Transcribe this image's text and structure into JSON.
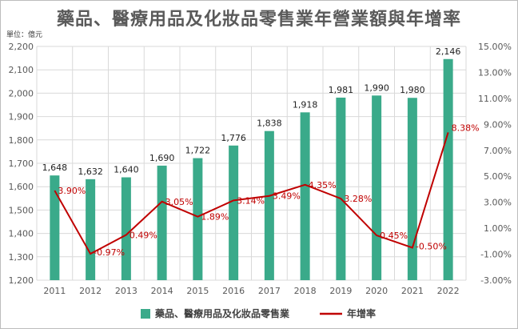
{
  "chart_data": {
    "type": "bar",
    "title": "藥品、醫療用品及化妝品零售業年營業額與年增率",
    "unit_label": "單位：億元",
    "categories": [
      "2011",
      "2012",
      "2013",
      "2014",
      "2015",
      "2016",
      "2017",
      "2018",
      "2019",
      "2020",
      "2021",
      "2022"
    ],
    "series": [
      {
        "name": "藥品、醫療用品及化妝品零售業",
        "type": "bar",
        "axis": "left",
        "color": "#3aaa8a",
        "values": [
          1648,
          1632,
          1640,
          1690,
          1722,
          1776,
          1838,
          1918,
          1981,
          1990,
          1980,
          2146
        ],
        "labels": [
          "1,648",
          "1,632",
          "1,640",
          "1,690",
          "1,722",
          "1,776",
          "1,838",
          "1,918",
          "1,981",
          "1,990",
          "1,980",
          "2,146"
        ]
      },
      {
        "name": "年增率",
        "type": "line",
        "axis": "right",
        "color": "#c00000",
        "values": [
          3.9,
          -0.97,
          0.49,
          3.05,
          1.89,
          3.14,
          3.49,
          4.35,
          3.28,
          0.45,
          -0.5,
          8.38
        ],
        "labels": [
          "3.90%",
          "-0.97%",
          "0.49%",
          "3.05%",
          "1.89%",
          "3.14%",
          "3.49%",
          "4.35%",
          "3.28%",
          "0.45%",
          "-0.50%",
          "8.38%"
        ]
      }
    ],
    "y_left": {
      "min": 1200,
      "max": 2200,
      "step": 100,
      "tick_labels": [
        "1,200",
        "1,300",
        "1,400",
        "1,500",
        "1,600",
        "1,700",
        "1,800",
        "1,900",
        "2,000",
        "2,100",
        "2,200"
      ]
    },
    "y_right": {
      "min": -3,
      "max": 15,
      "step": 2,
      "tick_labels": [
        "-3.00%",
        "-1.00%",
        "1.00%",
        "3.00%",
        "5.00%",
        "7.00%",
        "9.00%",
        "11.00%",
        "13.00%",
        "15.00%"
      ]
    },
    "grid": true,
    "legend_position": "bottom",
    "colors": {
      "bar": "#3aaa8a",
      "line": "#c00000",
      "grid": "#d9d9d9"
    }
  }
}
